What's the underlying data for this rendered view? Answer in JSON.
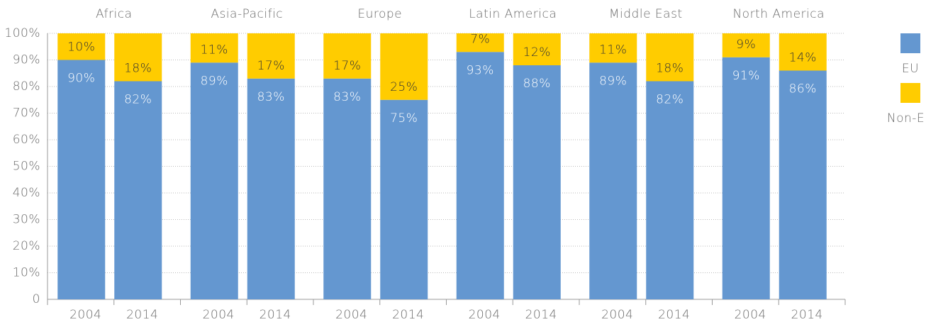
{
  "chart_data": {
    "type": "stacked_bar",
    "groups": [
      "Africa",
      "Asia-Pacific",
      "Europe",
      "Latin America",
      "Middle East",
      "North America"
    ],
    "categories": [
      "2004",
      "2014",
      "2004",
      "2014",
      "2004",
      "2014",
      "2004",
      "2014",
      "2004",
      "2014",
      "2004",
      "2014"
    ],
    "series": [
      {
        "name": "EU",
        "color": "#6497d0",
        "values": [
          90,
          82,
          89,
          83,
          83,
          75,
          93,
          88,
          89,
          82,
          91,
          86
        ],
        "value_labels": [
          "90%",
          "82%",
          "89%",
          "83%",
          "83%",
          "75%",
          "93%",
          "88%",
          "89%",
          "82%",
          "91%",
          "86%"
        ]
      },
      {
        "name": "Non-EU",
        "color": "#ffcc00",
        "values": [
          10,
          18,
          11,
          17,
          17,
          25,
          7,
          12,
          11,
          18,
          9,
          14
        ],
        "value_labels": [
          "10%",
          "18%",
          "11%",
          "17%",
          "17%",
          "25%",
          "7%",
          "12%",
          "11%",
          "18%",
          "9%",
          "14%"
        ]
      }
    ],
    "ylim": [
      0,
      100
    ],
    "yticks": [
      0,
      {
        "value": 10,
        "label": "10%"
      },
      {
        "value": 20,
        "label": "20%"
      },
      {
        "value": 30,
        "label": "30%"
      },
      {
        "value": 40,
        "label": "40%"
      },
      {
        "value": 50,
        "label": "50%"
      },
      {
        "value": 60,
        "label": "60%"
      },
      {
        "value": 70,
        "label": "70%"
      },
      {
        "value": 80,
        "label": "80%"
      },
      {
        "value": 90,
        "label": "90%"
      },
      {
        "value": 100,
        "label": "100%"
      }
    ],
    "grid": true,
    "legend": "right"
  }
}
